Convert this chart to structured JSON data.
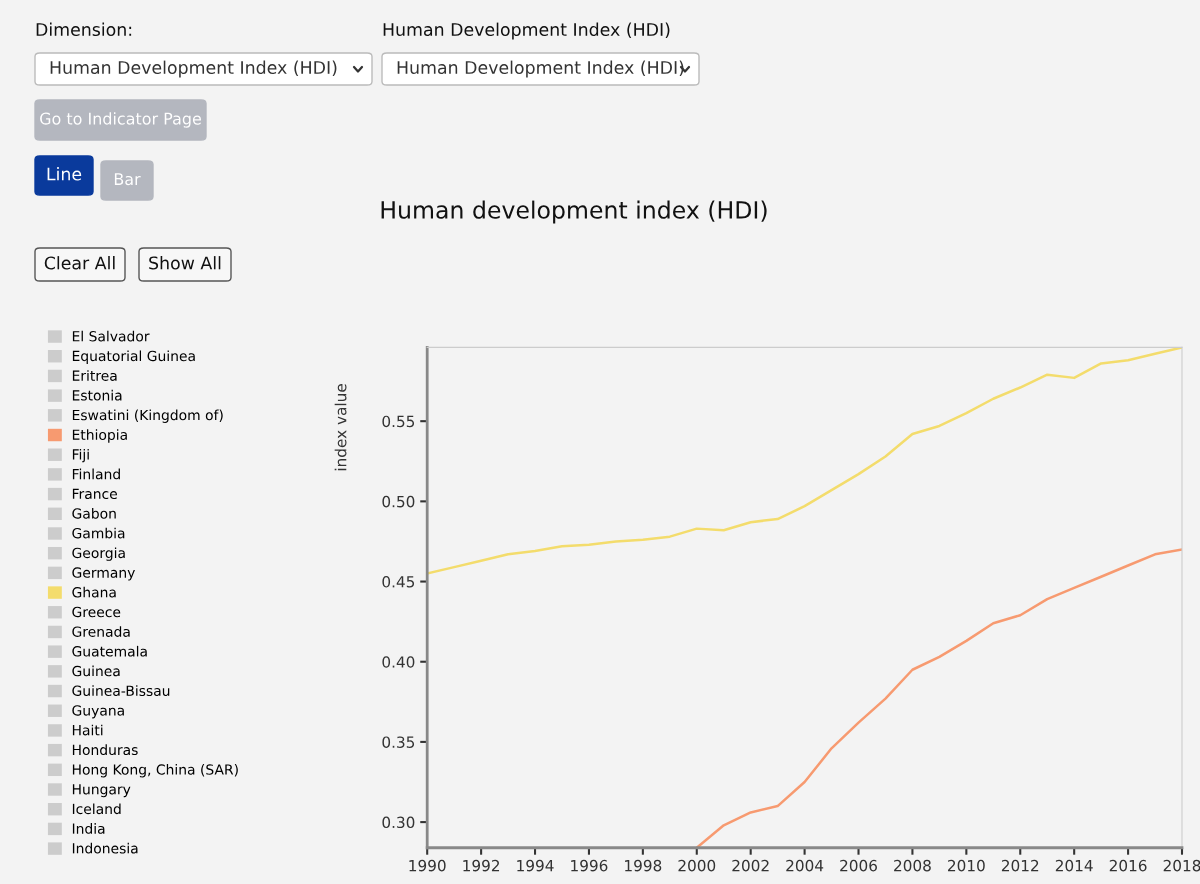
{
  "chart_data": {
    "type": "line",
    "title": "Human development index (HDI)",
    "ylabel": "index value",
    "annotations": [
      "Dimension:",
      "Human Development Index (HDI)",
      "Human Development Index (HDI)",
      "Human Development Index (HDI)",
      "Go to Indicator Page",
      "Line",
      "Bar",
      "Clear All",
      "Show All"
    ],
    "x": [
      1990,
      1991,
      1992,
      1993,
      1994,
      1995,
      1996,
      1997,
      1998,
      1999,
      2000,
      2001,
      2002,
      2003,
      2004,
      2005,
      2006,
      2007,
      2008,
      2009,
      2010,
      2011,
      2012,
      2013,
      2014,
      2015,
      2016,
      2017,
      2018
    ],
    "xlim": [
      1990,
      2018
    ],
    "xticks": [
      1990,
      1992,
      1994,
      1996,
      1998,
      2000,
      2002,
      2004,
      2006,
      2008,
      2010,
      2012,
      2014,
      2016,
      2018
    ],
    "ylim": [
      0.284,
      0.596
    ],
    "yticks": [
      {
        "value": 0.3,
        "label": "0.30"
      },
      {
        "value": 0.35,
        "label": "0.35"
      },
      {
        "value": 0.4,
        "label": "0.40"
      },
      {
        "value": 0.45,
        "label": "0.45"
      },
      {
        "value": 0.5,
        "label": "0.50"
      },
      {
        "value": 0.55,
        "label": "0.55"
      }
    ],
    "grid": false,
    "legend": "left",
    "marker": "none",
    "line_style": "solid",
    "series": [
      {
        "name": "El Salvador",
        "color": "#cccccc",
        "values": [
          null,
          null,
          null,
          null,
          null,
          null,
          null,
          null,
          null,
          null,
          null,
          null,
          null,
          null,
          null,
          null,
          null,
          null,
          null,
          null,
          null,
          null,
          null,
          null,
          null,
          null,
          null,
          null,
          null
        ]
      },
      {
        "name": "Equatorial Guinea",
        "color": "#cccccc",
        "values": [
          null,
          null,
          null,
          null,
          null,
          null,
          null,
          null,
          null,
          null,
          null,
          null,
          null,
          null,
          null,
          null,
          null,
          null,
          null,
          null,
          null,
          null,
          null,
          null,
          null,
          null,
          null,
          null,
          null
        ]
      },
      {
        "name": "Eritrea",
        "color": "#cccccc",
        "values": [
          null,
          null,
          null,
          null,
          null,
          null,
          null,
          null,
          null,
          null,
          null,
          null,
          null,
          null,
          null,
          null,
          null,
          null,
          null,
          null,
          null,
          null,
          null,
          null,
          null,
          null,
          null,
          null,
          null
        ]
      },
      {
        "name": "Estonia",
        "color": "#cccccc",
        "values": [
          null,
          null,
          null,
          null,
          null,
          null,
          null,
          null,
          null,
          null,
          null,
          null,
          null,
          null,
          null,
          null,
          null,
          null,
          null,
          null,
          null,
          null,
          null,
          null,
          null,
          null,
          null,
          null,
          null
        ]
      },
      {
        "name": "Eswatini (Kingdom of)",
        "color": "#cccccc",
        "values": [
          null,
          null,
          null,
          null,
          null,
          null,
          null,
          null,
          null,
          null,
          null,
          null,
          null,
          null,
          null,
          null,
          null,
          null,
          null,
          null,
          null,
          null,
          null,
          null,
          null,
          null,
          null,
          null,
          null
        ]
      },
      {
        "name": "Ethiopia",
        "color": "#f79a70",
        "values": [
          null,
          null,
          null,
          null,
          null,
          null,
          null,
          null,
          null,
          null,
          0.284,
          0.298,
          0.306,
          0.31,
          0.325,
          0.346,
          0.362,
          0.377,
          0.395,
          0.403,
          0.413,
          0.424,
          0.429,
          0.439,
          0.446,
          0.453,
          0.46,
          0.467,
          0.47
        ]
      },
      {
        "name": "Fiji",
        "color": "#cccccc",
        "values": [
          null,
          null,
          null,
          null,
          null,
          null,
          null,
          null,
          null,
          null,
          null,
          null,
          null,
          null,
          null,
          null,
          null,
          null,
          null,
          null,
          null,
          null,
          null,
          null,
          null,
          null,
          null,
          null,
          null
        ]
      },
      {
        "name": "Finland",
        "color": "#cccccc",
        "values": [
          null,
          null,
          null,
          null,
          null,
          null,
          null,
          null,
          null,
          null,
          null,
          null,
          null,
          null,
          null,
          null,
          null,
          null,
          null,
          null,
          null,
          null,
          null,
          null,
          null,
          null,
          null,
          null,
          null
        ]
      },
      {
        "name": "France",
        "color": "#cccccc",
        "values": [
          null,
          null,
          null,
          null,
          null,
          null,
          null,
          null,
          null,
          null,
          null,
          null,
          null,
          null,
          null,
          null,
          null,
          null,
          null,
          null,
          null,
          null,
          null,
          null,
          null,
          null,
          null,
          null,
          null
        ]
      },
      {
        "name": "Gabon",
        "color": "#cccccc",
        "values": [
          null,
          null,
          null,
          null,
          null,
          null,
          null,
          null,
          null,
          null,
          null,
          null,
          null,
          null,
          null,
          null,
          null,
          null,
          null,
          null,
          null,
          null,
          null,
          null,
          null,
          null,
          null,
          null,
          null
        ]
      },
      {
        "name": "Gambia",
        "color": "#cccccc",
        "values": [
          null,
          null,
          null,
          null,
          null,
          null,
          null,
          null,
          null,
          null,
          null,
          null,
          null,
          null,
          null,
          null,
          null,
          null,
          null,
          null,
          null,
          null,
          null,
          null,
          null,
          null,
          null,
          null,
          null
        ]
      },
      {
        "name": "Georgia",
        "color": "#cccccc",
        "values": [
          null,
          null,
          null,
          null,
          null,
          null,
          null,
          null,
          null,
          null,
          null,
          null,
          null,
          null,
          null,
          null,
          null,
          null,
          null,
          null,
          null,
          null,
          null,
          null,
          null,
          null,
          null,
          null,
          null
        ]
      },
      {
        "name": "Germany",
        "color": "#cccccc",
        "values": [
          null,
          null,
          null,
          null,
          null,
          null,
          null,
          null,
          null,
          null,
          null,
          null,
          null,
          null,
          null,
          null,
          null,
          null,
          null,
          null,
          null,
          null,
          null,
          null,
          null,
          null,
          null,
          null,
          null
        ]
      },
      {
        "name": "Ghana",
        "color": "#f3dc6c",
        "values": [
          0.455,
          0.459,
          0.463,
          0.467,
          0.469,
          0.472,
          0.473,
          0.475,
          0.476,
          0.478,
          0.483,
          0.482,
          0.487,
          0.489,
          0.497,
          0.507,
          0.517,
          0.528,
          0.542,
          0.547,
          0.555,
          0.564,
          0.571,
          0.579,
          0.577,
          0.586,
          0.588,
          0.592,
          0.596
        ]
      },
      {
        "name": "Greece",
        "color": "#cccccc",
        "values": [
          null,
          null,
          null,
          null,
          null,
          null,
          null,
          null,
          null,
          null,
          null,
          null,
          null,
          null,
          null,
          null,
          null,
          null,
          null,
          null,
          null,
          null,
          null,
          null,
          null,
          null,
          null,
          null,
          null
        ]
      },
      {
        "name": "Grenada",
        "color": "#cccccc",
        "values": [
          null,
          null,
          null,
          null,
          null,
          null,
          null,
          null,
          null,
          null,
          null,
          null,
          null,
          null,
          null,
          null,
          null,
          null,
          null,
          null,
          null,
          null,
          null,
          null,
          null,
          null,
          null,
          null,
          null
        ]
      },
      {
        "name": "Guatemala",
        "color": "#cccccc",
        "values": [
          null,
          null,
          null,
          null,
          null,
          null,
          null,
          null,
          null,
          null,
          null,
          null,
          null,
          null,
          null,
          null,
          null,
          null,
          null,
          null,
          null,
          null,
          null,
          null,
          null,
          null,
          null,
          null,
          null
        ]
      },
      {
        "name": "Guinea",
        "color": "#cccccc",
        "values": [
          null,
          null,
          null,
          null,
          null,
          null,
          null,
          null,
          null,
          null,
          null,
          null,
          null,
          null,
          null,
          null,
          null,
          null,
          null,
          null,
          null,
          null,
          null,
          null,
          null,
          null,
          null,
          null,
          null
        ]
      },
      {
        "name": "Guinea-Bissau",
        "color": "#cccccc",
        "values": [
          null,
          null,
          null,
          null,
          null,
          null,
          null,
          null,
          null,
          null,
          null,
          null,
          null,
          null,
          null,
          null,
          null,
          null,
          null,
          null,
          null,
          null,
          null,
          null,
          null,
          null,
          null,
          null,
          null
        ]
      },
      {
        "name": "Guyana",
        "color": "#cccccc",
        "values": [
          null,
          null,
          null,
          null,
          null,
          null,
          null,
          null,
          null,
          null,
          null,
          null,
          null,
          null,
          null,
          null,
          null,
          null,
          null,
          null,
          null,
          null,
          null,
          null,
          null,
          null,
          null,
          null,
          null
        ]
      },
      {
        "name": "Haiti",
        "color": "#cccccc",
        "values": [
          null,
          null,
          null,
          null,
          null,
          null,
          null,
          null,
          null,
          null,
          null,
          null,
          null,
          null,
          null,
          null,
          null,
          null,
          null,
          null,
          null,
          null,
          null,
          null,
          null,
          null,
          null,
          null,
          null
        ]
      },
      {
        "name": "Honduras",
        "color": "#cccccc",
        "values": [
          null,
          null,
          null,
          null,
          null,
          null,
          null,
          null,
          null,
          null,
          null,
          null,
          null,
          null,
          null,
          null,
          null,
          null,
          null,
          null,
          null,
          null,
          null,
          null,
          null,
          null,
          null,
          null,
          null
        ]
      },
      {
        "name": "Hong Kong, China (SAR)",
        "color": "#cccccc",
        "values": [
          null,
          null,
          null,
          null,
          null,
          null,
          null,
          null,
          null,
          null,
          null,
          null,
          null,
          null,
          null,
          null,
          null,
          null,
          null,
          null,
          null,
          null,
          null,
          null,
          null,
          null,
          null,
          null,
          null
        ]
      },
      {
        "name": "Hungary",
        "color": "#cccccc",
        "values": [
          null,
          null,
          null,
          null,
          null,
          null,
          null,
          null,
          null,
          null,
          null,
          null,
          null,
          null,
          null,
          null,
          null,
          null,
          null,
          null,
          null,
          null,
          null,
          null,
          null,
          null,
          null,
          null,
          null
        ]
      },
      {
        "name": "Iceland",
        "color": "#cccccc",
        "values": [
          null,
          null,
          null,
          null,
          null,
          null,
          null,
          null,
          null,
          null,
          null,
          null,
          null,
          null,
          null,
          null,
          null,
          null,
          null,
          null,
          null,
          null,
          null,
          null,
          null,
          null,
          null,
          null,
          null
        ]
      },
      {
        "name": "India",
        "color": "#cccccc",
        "values": [
          null,
          null,
          null,
          null,
          null,
          null,
          null,
          null,
          null,
          null,
          null,
          null,
          null,
          null,
          null,
          null,
          null,
          null,
          null,
          null,
          null,
          null,
          null,
          null,
          null,
          null,
          null,
          null,
          null
        ]
      },
      {
        "name": "Indonesia",
        "color": "#cccccc",
        "values": [
          null,
          null,
          null,
          null,
          null,
          null,
          null,
          null,
          null,
          null,
          null,
          null,
          null,
          null,
          null,
          null,
          null,
          null,
          null,
          null,
          null,
          null,
          null,
          null,
          null,
          null,
          null,
          null,
          null
        ]
      }
    ]
  }
}
